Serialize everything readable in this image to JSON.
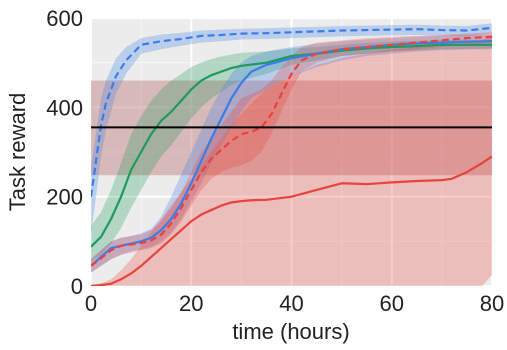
{
  "chart_data": {
    "type": "line",
    "title": "",
    "xlabel": "time (hours)",
    "ylabel": "Task reward",
    "xlim": [
      0,
      80
    ],
    "ylim": [
      0,
      600
    ],
    "xticks": [
      0,
      20,
      40,
      60,
      80
    ],
    "yticks": [
      0,
      200,
      400,
      600
    ],
    "grid": true,
    "legend": "none",
    "reference_line": {
      "value": 355,
      "color": "#000000"
    },
    "reference_band": {
      "low": 248,
      "high": 460,
      "color": "#c98f8f"
    },
    "series": [
      {
        "color": "#3a7de8",
        "style": "dashed",
        "x": [
          0,
          1,
          2,
          3,
          5,
          7,
          10,
          14,
          18,
          22,
          26,
          30,
          35,
          40,
          45,
          50,
          55,
          60,
          65,
          70,
          75,
          80
        ],
        "y": [
          200,
          280,
          360,
          410,
          470,
          505,
          540,
          548,
          553,
          560,
          562,
          565,
          566,
          568,
          570,
          572,
          573,
          574,
          575,
          573,
          572,
          578
        ],
        "low": [
          120,
          200,
          290,
          350,
          430,
          475,
          520,
          530,
          538,
          545,
          548,
          552,
          553,
          555,
          557,
          559,
          560,
          561,
          562,
          560,
          559,
          565
        ],
        "high": [
          270,
          340,
          420,
          460,
          510,
          535,
          555,
          563,
          567,
          572,
          574,
          576,
          577,
          579,
          580,
          582,
          583,
          584,
          585,
          583,
          582,
          588
        ]
      },
      {
        "color": "#1e9a5c",
        "style": "solid",
        "x": [
          0,
          2,
          4,
          6,
          8,
          10,
          12,
          14,
          16,
          18,
          20,
          22,
          24,
          26,
          28,
          30,
          35,
          40,
          45,
          50,
          55,
          60,
          65,
          70,
          75,
          80
        ],
        "y": [
          88,
          110,
          150,
          200,
          260,
          300,
          340,
          370,
          390,
          415,
          440,
          460,
          472,
          480,
          488,
          493,
          500,
          515,
          520,
          527,
          532,
          535,
          537,
          540,
          540,
          540
        ],
        "low": [
          55,
          70,
          95,
          130,
          175,
          215,
          255,
          290,
          315,
          345,
          375,
          400,
          420,
          435,
          450,
          460,
          475,
          495,
          505,
          515,
          520,
          525,
          527,
          530,
          530,
          530
        ],
        "high": [
          135,
          165,
          215,
          275,
          340,
          380,
          415,
          440,
          460,
          475,
          490,
          500,
          508,
          514,
          518,
          522,
          525,
          532,
          535,
          540,
          544,
          547,
          549,
          551,
          551,
          551
        ]
      },
      {
        "color": "#3a7de8",
        "style": "solid",
        "x": [
          0,
          2,
          4,
          6,
          8,
          10,
          12,
          14,
          16,
          18,
          20,
          22,
          24,
          26,
          28,
          30,
          32,
          35,
          40,
          45,
          50,
          55,
          60,
          65,
          70,
          75,
          80
        ],
        "y": [
          45,
          65,
          85,
          90,
          95,
          100,
          108,
          125,
          150,
          185,
          230,
          280,
          330,
          375,
          420,
          455,
          480,
          495,
          510,
          520,
          530,
          535,
          540,
          543,
          545,
          547,
          548
        ],
        "low": [
          30,
          45,
          60,
          70,
          78,
          82,
          88,
          100,
          120,
          150,
          190,
          230,
          275,
          315,
          355,
          390,
          420,
          440,
          470,
          490,
          505,
          515,
          520,
          525,
          528,
          530,
          532
        ],
        "high": [
          60,
          80,
          100,
          108,
          112,
          118,
          128,
          155,
          200,
          250,
          300,
          350,
          400,
          440,
          475,
          500,
          515,
          525,
          535,
          542,
          548,
          552,
          555,
          558,
          560,
          562,
          563
        ]
      },
      {
        "color": "#e8433c",
        "style": "dashed",
        "x": [
          0,
          2,
          4,
          6,
          8,
          10,
          12,
          14,
          16,
          18,
          20,
          22,
          24,
          26,
          28,
          30,
          32,
          34,
          36,
          38,
          40,
          42,
          45,
          50,
          55,
          60,
          65,
          70,
          75,
          80
        ],
        "y": [
          45,
          62,
          80,
          90,
          93,
          96,
          102,
          115,
          140,
          175,
          215,
          255,
          285,
          305,
          325,
          340,
          345,
          355,
          385,
          430,
          475,
          505,
          520,
          530,
          535,
          540,
          545,
          550,
          555,
          558
        ],
        "low": [
          30,
          45,
          60,
          70,
          75,
          80,
          85,
          95,
          115,
          145,
          180,
          215,
          240,
          255,
          265,
          270,
          280,
          300,
          340,
          390,
          440,
          480,
          500,
          515,
          520,
          525,
          530,
          535,
          540,
          545
        ],
        "high": [
          60,
          80,
          100,
          108,
          112,
          115,
          125,
          145,
          175,
          210,
          255,
          300,
          330,
          360,
          390,
          420,
          430,
          440,
          460,
          490,
          515,
          535,
          545,
          550,
          555,
          558,
          560,
          562,
          565,
          568
        ]
      },
      {
        "color": "#e8433c",
        "style": "solid",
        "x": [
          0,
          2,
          4,
          6,
          8,
          10,
          12,
          14,
          16,
          18,
          20,
          22,
          24,
          26,
          28,
          30,
          32,
          35,
          40,
          45,
          50,
          55,
          60,
          65,
          70,
          72,
          75,
          78,
          80
        ],
        "y": [
          0,
          2,
          5,
          15,
          28,
          45,
          65,
          85,
          105,
          125,
          145,
          160,
          170,
          180,
          187,
          190,
          192,
          193,
          200,
          215,
          230,
          228,
          232,
          235,
          237,
          240,
          255,
          275,
          290
        ],
        "low": [
          0,
          0,
          0,
          0,
          0,
          0,
          0,
          0,
          0,
          0,
          0,
          0,
          0,
          0,
          0,
          0,
          0,
          0,
          0,
          0,
          0,
          0,
          0,
          0,
          0,
          0,
          0,
          0,
          25
        ],
        "high": [
          2,
          6,
          15,
          35,
          60,
          90,
          120,
          150,
          180,
          210,
          240,
          270,
          300,
          330,
          360,
          385,
          410,
          440,
          470,
          495,
          510,
          520,
          530,
          535,
          538,
          540,
          545,
          550,
          560
        ]
      }
    ]
  }
}
